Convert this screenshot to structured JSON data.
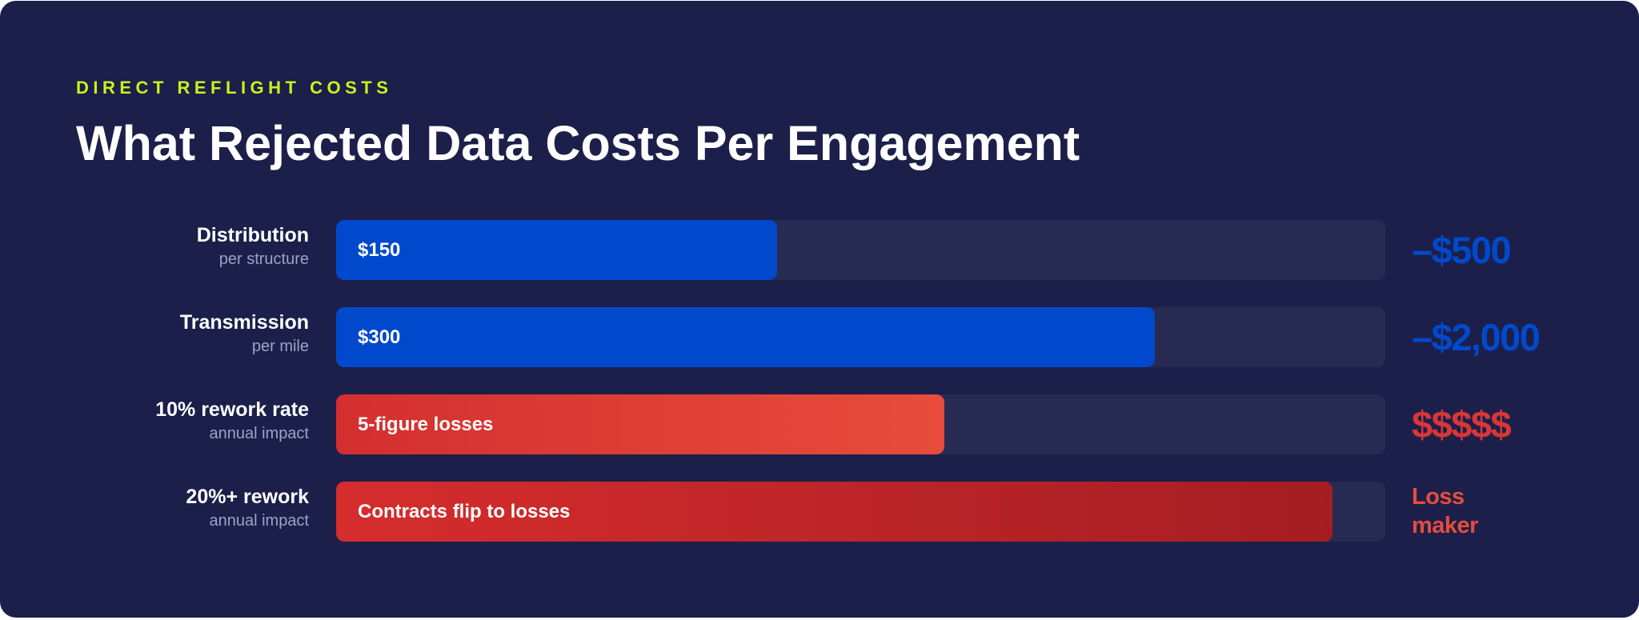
{
  "colors": {
    "background": "#1c1f4a",
    "eyebrow": "#c8f31d",
    "blue": "#0149cc",
    "red": "#e74c3c",
    "track": "#272a53",
    "sublabel": "#9aa3c7"
  },
  "header": {
    "eyebrow": "DIRECT REFLIGHT COSTS",
    "title": "What Rejected Data Costs Per Engagement"
  },
  "chart_data": {
    "type": "bar",
    "orientation": "horizontal",
    "title": "What Rejected Data Costs Per Engagement",
    "categories": [
      "Distribution",
      "Transmission",
      "10% rework rate",
      "20%+ rework"
    ],
    "rows": [
      {
        "label": "Distribution",
        "sublabel": "per structure",
        "bar_text": "$150",
        "fill_fraction": 0.42,
        "end_value": "–$500",
        "color": "#0149cc",
        "style": "blue"
      },
      {
        "label": "Transmission",
        "sublabel": "per mile",
        "bar_text": "$300",
        "fill_fraction": 0.78,
        "end_value": "–$2,000",
        "color": "#0149cc",
        "style": "blue"
      },
      {
        "label": "10% rework rate",
        "sublabel": "annual impact",
        "bar_text": "5-figure losses",
        "fill_fraction": 0.58,
        "end_value": "$$$$$",
        "color": "#d93636",
        "style": "red1"
      },
      {
        "label": "20%+ rework",
        "sublabel": "annual impact",
        "bar_text": "Contracts flip to losses",
        "fill_fraction": 0.95,
        "end_value": "Loss maker",
        "color": "#e74c3c",
        "style": "red2"
      }
    ]
  }
}
